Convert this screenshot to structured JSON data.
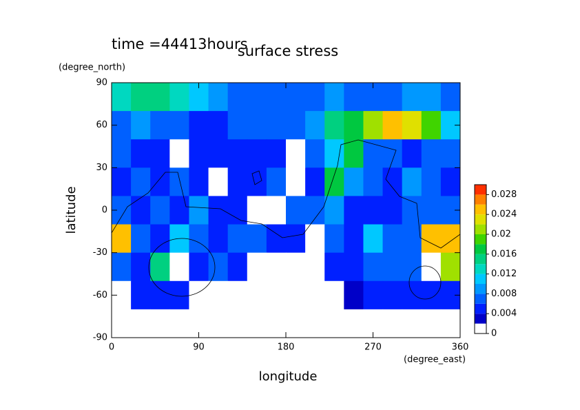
{
  "chart_data": {
    "type": "heatmap",
    "title": "surface stress",
    "time_label": "time =44413hours",
    "xlabel": "longitude",
    "xunit": "(degree_east)",
    "ylabel": "latitude",
    "yunit": "(degree_north)",
    "xlim": [
      0,
      360
    ],
    "ylim": [
      -90,
      90
    ],
    "xticks": [
      0,
      90,
      180,
      270,
      360
    ],
    "yticks": [
      -90,
      -60,
      -30,
      0,
      30,
      60,
      90
    ],
    "x": [
      10,
      30,
      50,
      70,
      90,
      110,
      130,
      150,
      170,
      190,
      210,
      230,
      250,
      270,
      290,
      310,
      330,
      350
    ],
    "y": [
      80,
      60,
      40,
      20,
      0,
      -20,
      -40,
      -60,
      -80
    ],
    "z": [
      [
        0.012,
        0.014,
        0.014,
        0.012,
        0.01,
        0.008,
        0.006,
        0.006,
        0.006,
        0.006,
        0.006,
        0.008,
        0.006,
        0.006,
        0.006,
        0.008,
        0.008,
        0.006
      ],
      [
        0.006,
        0.008,
        0.006,
        0.006,
        0.004,
        0.004,
        0.006,
        0.006,
        0.006,
        0.006,
        0.008,
        0.014,
        0.016,
        0.02,
        0.024,
        0.022,
        0.018,
        0.01
      ],
      [
        0.006,
        0.004,
        0.004,
        0,
        0.004,
        0.004,
        0.004,
        0.004,
        0.004,
        0,
        0.006,
        0.01,
        0.016,
        0.006,
        0.006,
        0.004,
        0.006,
        0.006
      ],
      [
        0.004,
        0.006,
        0.004,
        0.006,
        0.004,
        0,
        0.004,
        0.004,
        0.006,
        0,
        0.004,
        0.016,
        0.008,
        0.006,
        0.004,
        0.008,
        0.006,
        0.004
      ],
      [
        0.006,
        0.004,
        0.006,
        0.004,
        0.008,
        0.004,
        0.004,
        0,
        0,
        0.006,
        0.006,
        0.008,
        0.004,
        0.004,
        0.004,
        0.006,
        0.006,
        0.006
      ],
      [
        0.024,
        0.006,
        0.004,
        0.01,
        0.006,
        0.004,
        0.006,
        0.006,
        0.004,
        0.004,
        0,
        0.006,
        0.004,
        0.01,
        0.006,
        0.006,
        0.024,
        0.024
      ],
      [
        0.006,
        0.004,
        0.014,
        0,
        0.004,
        0.006,
        0.004,
        0,
        0,
        0,
        0,
        0.004,
        0.004,
        0.006,
        0.006,
        0.006,
        0,
        0.02
      ],
      [
        0,
        0.004,
        0.004,
        0.004,
        0,
        0,
        0,
        0,
        0,
        0,
        0,
        0,
        0.002,
        0.004,
        0.004,
        0.004,
        0.004,
        0.004
      ],
      [
        0,
        0,
        0,
        0,
        0,
        0,
        0,
        0,
        0,
        0,
        0,
        0,
        0,
        0,
        0,
        0,
        0,
        0
      ]
    ],
    "levels": [
      0,
      0.002,
      0.004,
      0.006,
      0.008,
      0.01,
      0.012,
      0.014,
      0.016,
      0.018,
      0.02,
      0.022,
      0.024,
      0.026,
      0.028,
      0.03
    ],
    "colors": [
      "#ffffff",
      "#0000c8",
      "#0020ff",
      "#0060ff",
      "#0098ff",
      "#00c8ff",
      "#00d8c0",
      "#00d080",
      "#00c840",
      "#40d400",
      "#a0e000",
      "#e0e000",
      "#ffc000",
      "#ff8000",
      "#ff3000"
    ],
    "cbticks": [
      0,
      0.004,
      0.008,
      0.012,
      0.016,
      0.02,
      0.024,
      0.028
    ]
  }
}
